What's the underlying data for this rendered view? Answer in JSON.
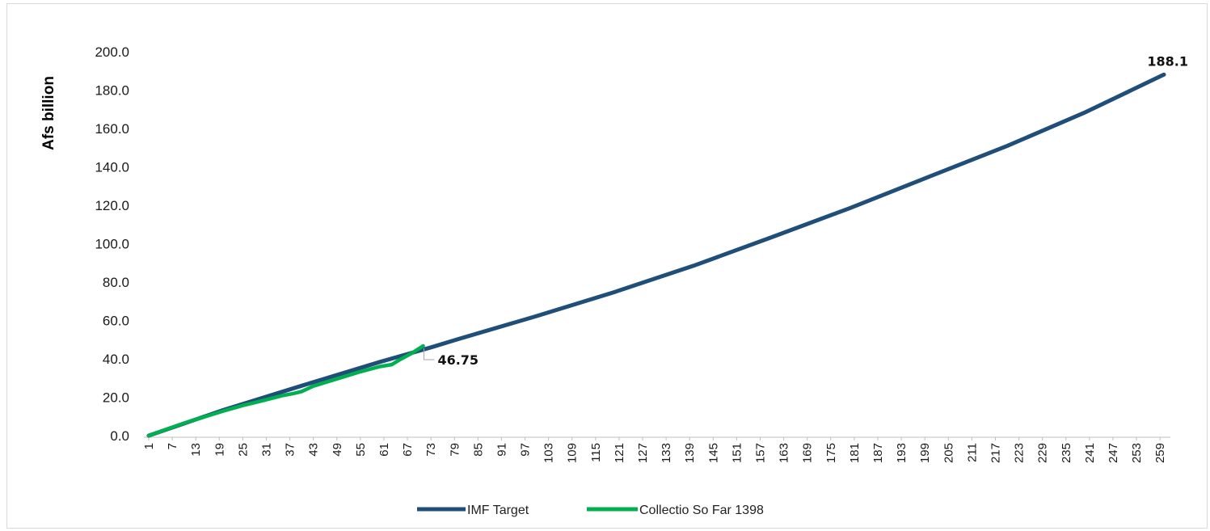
{
  "chart_data": {
    "type": "line",
    "ylabel": "Afs billion",
    "xlabel": "",
    "title": "",
    "ylim": [
      0,
      200
    ],
    "yticks": [
      "0.0",
      "20.0",
      "40.0",
      "60.0",
      "80.0",
      "100.0",
      "120.0",
      "140.0",
      "160.0",
      "180.0",
      "200.0"
    ],
    "xlim": [
      1,
      260
    ],
    "xtick_start": 1,
    "xtick_step": 6,
    "xtick_end": 259,
    "grid": false,
    "legend_position": "bottom-center",
    "series": [
      {
        "name": "IMF Target",
        "color": "#1f4e79",
        "x": [
          1,
          20,
          40,
          60,
          73,
          80,
          100,
          120,
          140,
          160,
          180,
          200,
          220,
          240,
          260
        ],
        "y": [
          0.0,
          13.3,
          26.0,
          38.4,
          46.0,
          50.3,
          62.3,
          74.9,
          88.5,
          103.4,
          118.6,
          134.8,
          150.9,
          168.5,
          188.1
        ]
      },
      {
        "name": "Collectio So Far 1398",
        "color": "#00b050",
        "x": [
          1,
          10,
          20,
          25,
          30,
          35,
          38,
          40,
          43,
          50,
          55,
          60,
          63,
          65,
          68,
          71
        ],
        "y": [
          0.0,
          6.5,
          12.8,
          15.7,
          18.2,
          20.8,
          22.0,
          23.0,
          25.8,
          30.2,
          33.3,
          36.0,
          37.0,
          39.5,
          42.8,
          46.75
        ]
      }
    ],
    "annotations": [
      {
        "text": "46.75",
        "x": 71,
        "y": 46.75
      },
      {
        "text": "188.1",
        "x": 260,
        "y": 188.1
      }
    ]
  }
}
